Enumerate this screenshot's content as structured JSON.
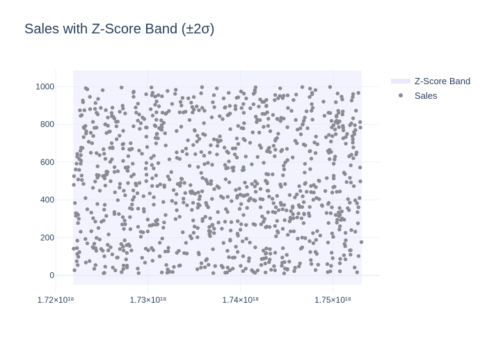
{
  "chart_data": {
    "type": "scatter",
    "title": "Sales with Z-Score Band (±2σ)",
    "xlabel": "",
    "ylabel": "",
    "xlim": [
      1.72e+18,
      1.755e+18
    ],
    "ylim": [
      -90,
      1090
    ],
    "grid": true,
    "legend_position": "top-right",
    "x_ticks": [
      {
        "value": 1.72e+18,
        "label": "1.72×10¹⁸"
      },
      {
        "value": 1.73e+18,
        "label": "1.73×10¹⁸"
      },
      {
        "value": 1.74e+18,
        "label": "1.74×10¹⁸"
      },
      {
        "value": 1.75e+18,
        "label": "1.75×10¹⁸"
      }
    ],
    "y_ticks": [
      {
        "value": 0,
        "label": "0"
      },
      {
        "value": 200,
        "label": "200"
      },
      {
        "value": 400,
        "label": "400"
      },
      {
        "value": 600,
        "label": "600"
      },
      {
        "value": 800,
        "label": "800"
      },
      {
        "value": 1000,
        "label": "1000"
      }
    ],
    "band": {
      "name": "Z-Score Band",
      "x_range": [
        1.7219e+18,
        1.7531e+18
      ],
      "y_range": [
        -50,
        1085
      ],
      "color": "#e8e9ff"
    },
    "series": [
      {
        "name": "Sales",
        "color": "#8a8a93",
        "x_range": [
          1.7219e+18,
          1.7531e+18
        ],
        "count": 1000,
        "y_range": [
          10,
          1000
        ]
      }
    ]
  },
  "legend": {
    "items": [
      {
        "label": "Z-Score Band"
      },
      {
        "label": "Sales"
      }
    ]
  },
  "colors": {
    "grid": "#ebf0f8",
    "zeroline": "#ebf0f8",
    "band": "#e8e9ff",
    "marker": "#8a8a93",
    "text": "#2a3f5f"
  }
}
